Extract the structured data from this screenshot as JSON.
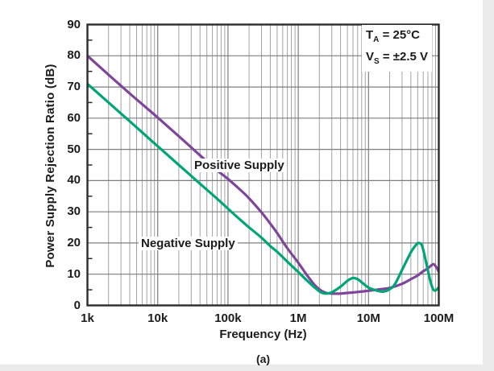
{
  "caption": "(a)",
  "colors": {
    "positive_supply": "#7E459B",
    "negative_supply": "#00A577",
    "grid_major": "#7d7d7d",
    "grid_minor": "#a2a2a2",
    "frame": "#2b2b2b",
    "text": "#1c1c1c"
  },
  "chart_data": {
    "type": "line",
    "title": "",
    "xlabel": "Frequency (Hz)",
    "ylabel": "Power Supply Rejection Ratio (dB)",
    "x_scale": "log",
    "xlim_hz": [
      1000,
      100000000
    ],
    "ylim": [
      0,
      90
    ],
    "grid": "full log minor gridlines (2-9) per decade; horizontal lines every 10 dB; 5 dB ticks on left axis",
    "legend_position": "inline curve labels",
    "x_ticks": [
      {
        "value": 1000,
        "label": "1k"
      },
      {
        "value": 10000,
        "label": "10k"
      },
      {
        "value": 100000,
        "label": "100k"
      },
      {
        "value": 1000000,
        "label": "1M"
      },
      {
        "value": 10000000,
        "label": "10M"
      },
      {
        "value": 100000000,
        "label": "100M"
      }
    ],
    "y_ticks": [
      0,
      10,
      20,
      30,
      40,
      50,
      60,
      70,
      80,
      90
    ],
    "annotations": [
      {
        "base": "T",
        "sub": "A",
        "rest": " = 25°C"
      },
      {
        "base": "V",
        "sub": "S",
        "rest": " = ±2.5 V"
      }
    ],
    "series": [
      {
        "name": "Positive Supply",
        "color": "#7E459B",
        "points": [
          [
            1000,
            80
          ],
          [
            2000,
            73.9
          ],
          [
            4000,
            67.9
          ],
          [
            7000,
            63.2
          ],
          [
            10000,
            60.2
          ],
          [
            20000,
            54.2
          ],
          [
            40000,
            48.1
          ],
          [
            70000,
            43.3
          ],
          [
            100000,
            40.5
          ],
          [
            150000,
            37.0
          ],
          [
            200000,
            34.3
          ],
          [
            300000,
            29.8
          ],
          [
            400000,
            26.2
          ],
          [
            500000,
            23.2
          ],
          [
            700000,
            18.3
          ],
          [
            1000000,
            13.7
          ],
          [
            1300000,
            10.0
          ],
          [
            1700000,
            6.6
          ],
          [
            2100000,
            4.8
          ],
          [
            2500000,
            4.0
          ],
          [
            3000000,
            3.8
          ],
          [
            4000000,
            3.8
          ],
          [
            5000000,
            4.0
          ],
          [
            7000000,
            4.3
          ],
          [
            10000000,
            4.7
          ],
          [
            14000000,
            5.1
          ],
          [
            20000000,
            5.6
          ],
          [
            30000000,
            6.9
          ],
          [
            40000000,
            8.4
          ],
          [
            50000000,
            9.6
          ],
          [
            58000000,
            10.7
          ],
          [
            70000000,
            11.9
          ],
          [
            79000000,
            12.9
          ],
          [
            85000000,
            13.2
          ],
          [
            92000000,
            12.3
          ],
          [
            100000000,
            10.8
          ]
        ]
      },
      {
        "name": "Negative Supply",
        "color": "#00A577",
        "points": [
          [
            1000,
            71
          ],
          [
            2000,
            65
          ],
          [
            4000,
            59
          ],
          [
            7000,
            54.1
          ],
          [
            10000,
            51
          ],
          [
            20000,
            45
          ],
          [
            40000,
            39
          ],
          [
            70000,
            34.2
          ],
          [
            100000,
            31
          ],
          [
            150000,
            27.4
          ],
          [
            200000,
            25
          ],
          [
            300000,
            21.7
          ],
          [
            400000,
            19
          ],
          [
            500000,
            17.2
          ],
          [
            700000,
            14
          ],
          [
            1000000,
            10.7
          ],
          [
            1300000,
            8.2
          ],
          [
            1700000,
            5.8
          ],
          [
            2100000,
            4.2
          ],
          [
            2500000,
            3.8
          ],
          [
            3000000,
            4.2
          ],
          [
            4000000,
            6.0
          ],
          [
            5000000,
            7.9
          ],
          [
            6000000,
            8.8
          ],
          [
            7000000,
            8.4
          ],
          [
            8500000,
            6.9
          ],
          [
            10000000,
            5.7
          ],
          [
            13000000,
            4.8
          ],
          [
            16000000,
            4.4
          ],
          [
            20000000,
            5.2
          ],
          [
            24000000,
            7.0
          ],
          [
            31000000,
            12.0
          ],
          [
            40000000,
            17.0
          ],
          [
            47000000,
            19.3
          ],
          [
            52000000,
            20.0
          ],
          [
            58000000,
            19.0
          ],
          [
            66000000,
            13.7
          ],
          [
            76000000,
            7.7
          ],
          [
            83000000,
            5.2
          ],
          [
            90000000,
            4.8
          ],
          [
            100000000,
            5.8
          ]
        ]
      }
    ]
  }
}
